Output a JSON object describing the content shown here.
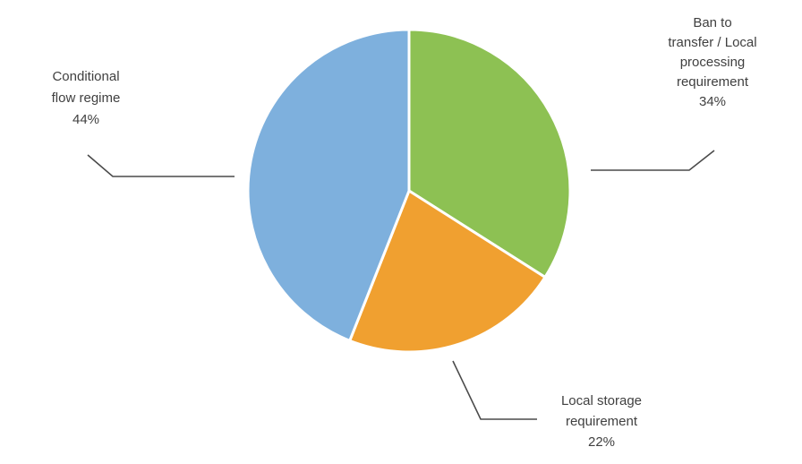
{
  "chart_data": {
    "type": "pie",
    "title": "",
    "slices": [
      {
        "label_lines": [
          "Ban to",
          "transfer / Local",
          "processing",
          "requirement"
        ],
        "value": 34,
        "value_label": "34%",
        "color": "#8DC153"
      },
      {
        "label_lines": [
          "Local storage",
          "requirement"
        ],
        "value": 22,
        "value_label": "22%",
        "color": "#F0A030"
      },
      {
        "label_lines": [
          "Conditional",
          "flow regime"
        ],
        "value": 44,
        "value_label": "44%",
        "color": "#7EB0DD"
      }
    ],
    "start": "top",
    "direction": "clockwise",
    "legend": "none"
  }
}
